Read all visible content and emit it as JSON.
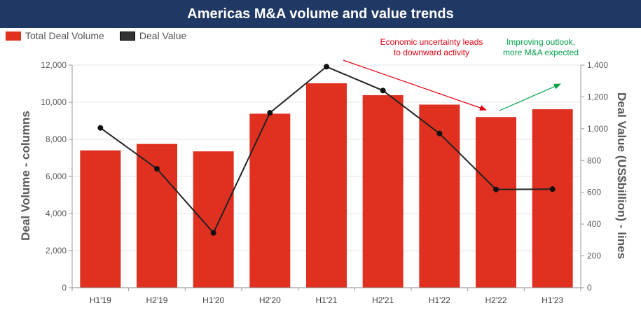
{
  "header": {
    "title": "Americas M&A volume and value trends"
  },
  "legend": [
    {
      "label": "Total Deal Volume",
      "color": "#e03020"
    },
    {
      "label": "Deal Value",
      "color": "#333333"
    }
  ],
  "annotations": {
    "down_line1": "Economic uncertainty leads",
    "down_line2": "to downward activity",
    "down_color": "#e0000f",
    "up_line1": "Improving outlook,",
    "up_line2": "more M&A expected",
    "up_color": "#00a04a"
  },
  "chart_data": {
    "type": "bar",
    "title": "Americas M&A volume and value trends",
    "categories": [
      "H1'19",
      "H2'19",
      "H1'20",
      "H2'20",
      "H1'21",
      "H2'21",
      "H1'22",
      "H2'22",
      "H1'23"
    ],
    "series": [
      {
        "name": "Total Deal Volume",
        "type": "bar",
        "axis": "left",
        "color": "#e03020",
        "values": [
          7400,
          7750,
          7350,
          9380,
          11020,
          10380,
          9870,
          9200,
          9620
        ]
      },
      {
        "name": "Deal Value",
        "type": "line",
        "axis": "right",
        "color": "#222222",
        "values": [
          1005,
          748,
          345,
          1100,
          1390,
          1240,
          970,
          618,
          620
        ]
      }
    ],
    "ylabel": "Deal Volume - columns",
    "y2label": "Deal Value (US$billion) - lines",
    "ylim": [
      0,
      12000
    ],
    "y2lim": [
      0,
      1400
    ],
    "yticks": [
      "0",
      "2,000",
      "4,000",
      "6,000",
      "8,000",
      "10,000",
      "12,000"
    ],
    "y2ticks": [
      "0",
      "200",
      "400",
      "600",
      "800",
      "1,000",
      "1,200",
      "1,400"
    ],
    "grid": true
  }
}
